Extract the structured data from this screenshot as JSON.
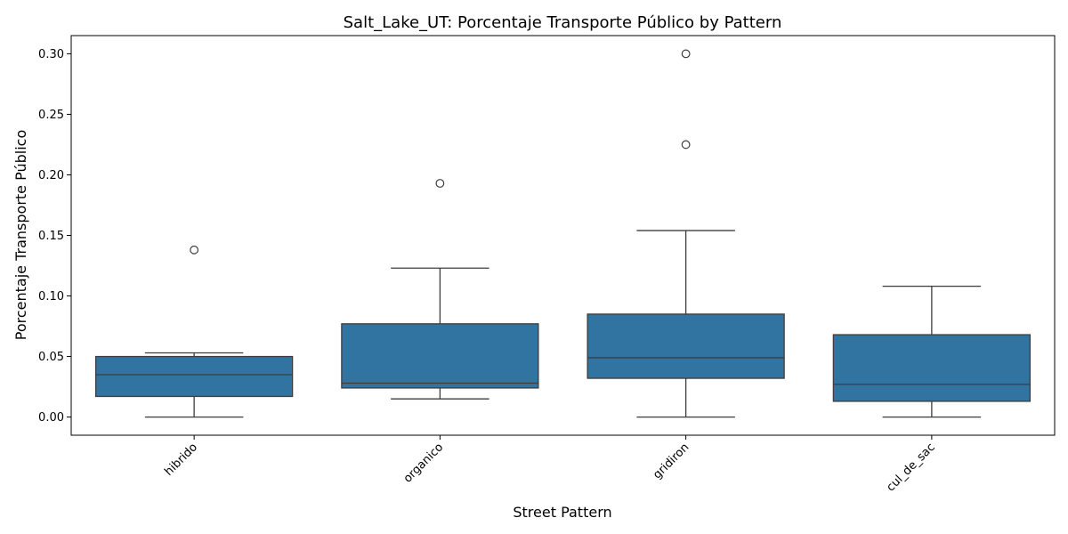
{
  "chart_data": {
    "type": "box",
    "title": "Salt_Lake_UT: Porcentaje Transporte Público by Pattern",
    "xlabel": "Street Pattern",
    "ylabel": "Porcentaje Transporte Público",
    "ylim": [
      -0.015,
      0.315
    ],
    "yticks": [
      0.0,
      0.05,
      0.1,
      0.15,
      0.2,
      0.25,
      0.3
    ],
    "ytick_labels": [
      "0.00",
      "0.05",
      "0.10",
      "0.15",
      "0.20",
      "0.25",
      "0.30"
    ],
    "grid": false,
    "box_color": "#3274a1",
    "categories": [
      "hibrido",
      "organico",
      "gridiron",
      "cul_de_sac"
    ],
    "boxes": [
      {
        "category": "hibrido",
        "whisker_low": 0.0,
        "q1": 0.017,
        "median": 0.035,
        "q3": 0.05,
        "whisker_high": 0.053,
        "outliers": [
          0.138
        ]
      },
      {
        "category": "organico",
        "whisker_low": 0.015,
        "q1": 0.024,
        "median": 0.028,
        "q3": 0.077,
        "whisker_high": 0.123,
        "outliers": [
          0.193
        ]
      },
      {
        "category": "gridiron",
        "whisker_low": 0.0,
        "q1": 0.032,
        "median": 0.049,
        "q3": 0.085,
        "whisker_high": 0.154,
        "outliers": [
          0.225,
          0.3
        ]
      },
      {
        "category": "cul_de_sac",
        "whisker_low": 0.0,
        "q1": 0.013,
        "median": 0.027,
        "q3": 0.068,
        "whisker_high": 0.108,
        "outliers": []
      }
    ]
  }
}
